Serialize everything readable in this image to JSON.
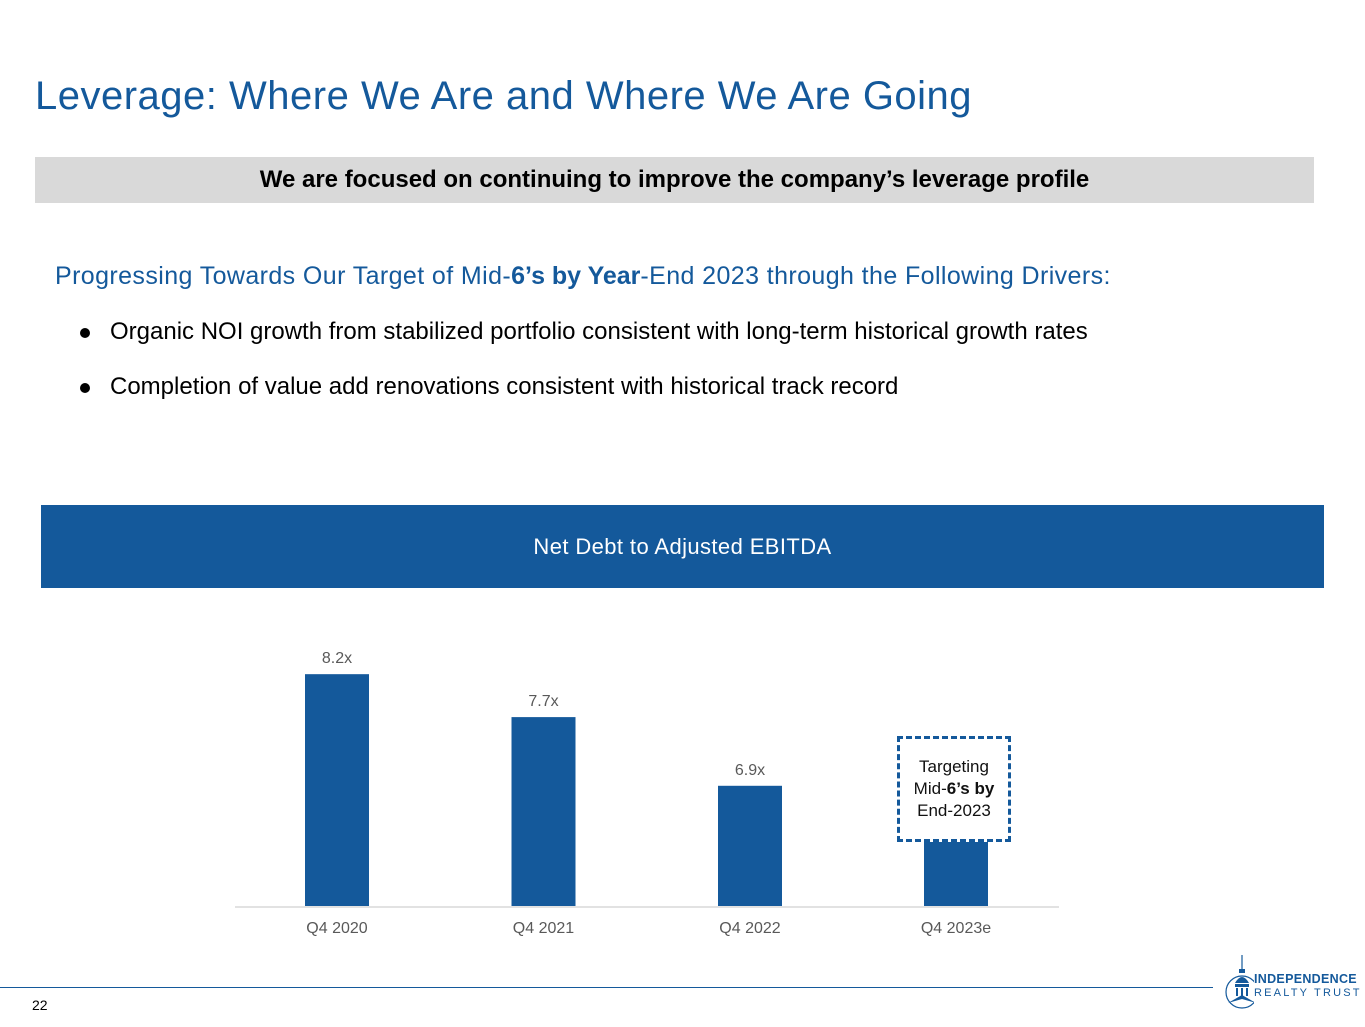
{
  "slide": {
    "title": "Leverage: Where We Are and Where We Are Going",
    "banner": "We are focused on continuing to improve the company’s leverage profile",
    "subhead": {
      "part1": "Progressing Towards Our Target of Mid-",
      "part2": "6’s by Year",
      "part3": "-End 2023 through the Following Drivers:"
    },
    "bullets": [
      "Organic NOI growth from stabilized portfolio consistent with long-term historical growth rates",
      "Completion of value add renovations consistent with historical track record"
    ],
    "chart_header": "Net Debt to Adjusted EBITDA",
    "target_box": {
      "line1": "Targeting",
      "line2a": "Mid-",
      "line2b": "6’s by",
      "line3": "End-2023"
    },
    "page_number": "22",
    "logo": {
      "line1": "INDEPENDENCE",
      "line2": "REALTY TRUST"
    }
  },
  "chart_data": {
    "type": "bar",
    "title": "Net Debt to Adjusted EBITDA",
    "categories": [
      "Q4 2020",
      "Q4 2021",
      "Q4 2022",
      "Q4 2023e"
    ],
    "values": [
      8.2,
      7.7,
      6.9,
      6.5
    ],
    "data_labels": [
      "8.2x",
      "7.7x",
      "6.9x",
      ""
    ],
    "ylim": [
      5.5,
      8.4
    ],
    "colors": {
      "bar": "#14599b",
      "axis": "#d9d9d9",
      "label": "#595959"
    },
    "grid": false,
    "legend": "none"
  }
}
